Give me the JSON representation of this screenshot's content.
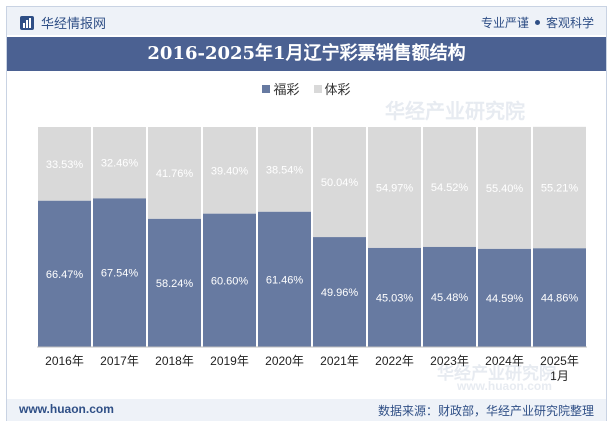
{
  "header": {
    "brand": "华经情报网",
    "slogan_left": "专业严谨",
    "slogan_right": "客观科学"
  },
  "footer": {
    "url": "www.huaon.com",
    "source": "数据来源：财政部，华经产业研究院整理"
  },
  "watermark": {
    "text_top": "华经产业研究院",
    "text_bottom": "华经产业研究院",
    "url_bottom": "www.huaon.com"
  },
  "colors": {
    "fucai": "#677aa1",
    "ticai": "#d9d9d9",
    "title_bg": "#4b6192",
    "brand": "#2f4f86"
  },
  "chart_data": {
    "type": "bar",
    "stacked": true,
    "percent": true,
    "title": "2016-2025年1月辽宁彩票销售额结构",
    "categories": [
      "2016年",
      "2017年",
      "2018年",
      "2019年",
      "2020年",
      "2021年",
      "2022年",
      "2023年",
      "2024年",
      "2025年1月"
    ],
    "series": [
      {
        "name": "福彩",
        "values": [
          66.47,
          67.54,
          58.24,
          60.6,
          61.46,
          49.96,
          45.03,
          45.48,
          44.59,
          44.86
        ],
        "labels": [
          "66.47%",
          "67.54%",
          "58.24%",
          "60.60%",
          "61.46%",
          "49.96%",
          "45.03%",
          "45.48%",
          "44.59%",
          "44.86%"
        ]
      },
      {
        "name": "体彩",
        "values": [
          33.53,
          32.46,
          41.76,
          39.4,
          38.54,
          50.04,
          54.97,
          54.52,
          55.4,
          55.21
        ],
        "labels": [
          "33.53%",
          "32.46%",
          "41.76%",
          "39.40%",
          "38.54%",
          "50.04%",
          "54.97%",
          "54.52%",
          "55.40%",
          "55.21%"
        ]
      }
    ],
    "ylim": [
      0,
      100
    ],
    "legend": "top-center"
  }
}
